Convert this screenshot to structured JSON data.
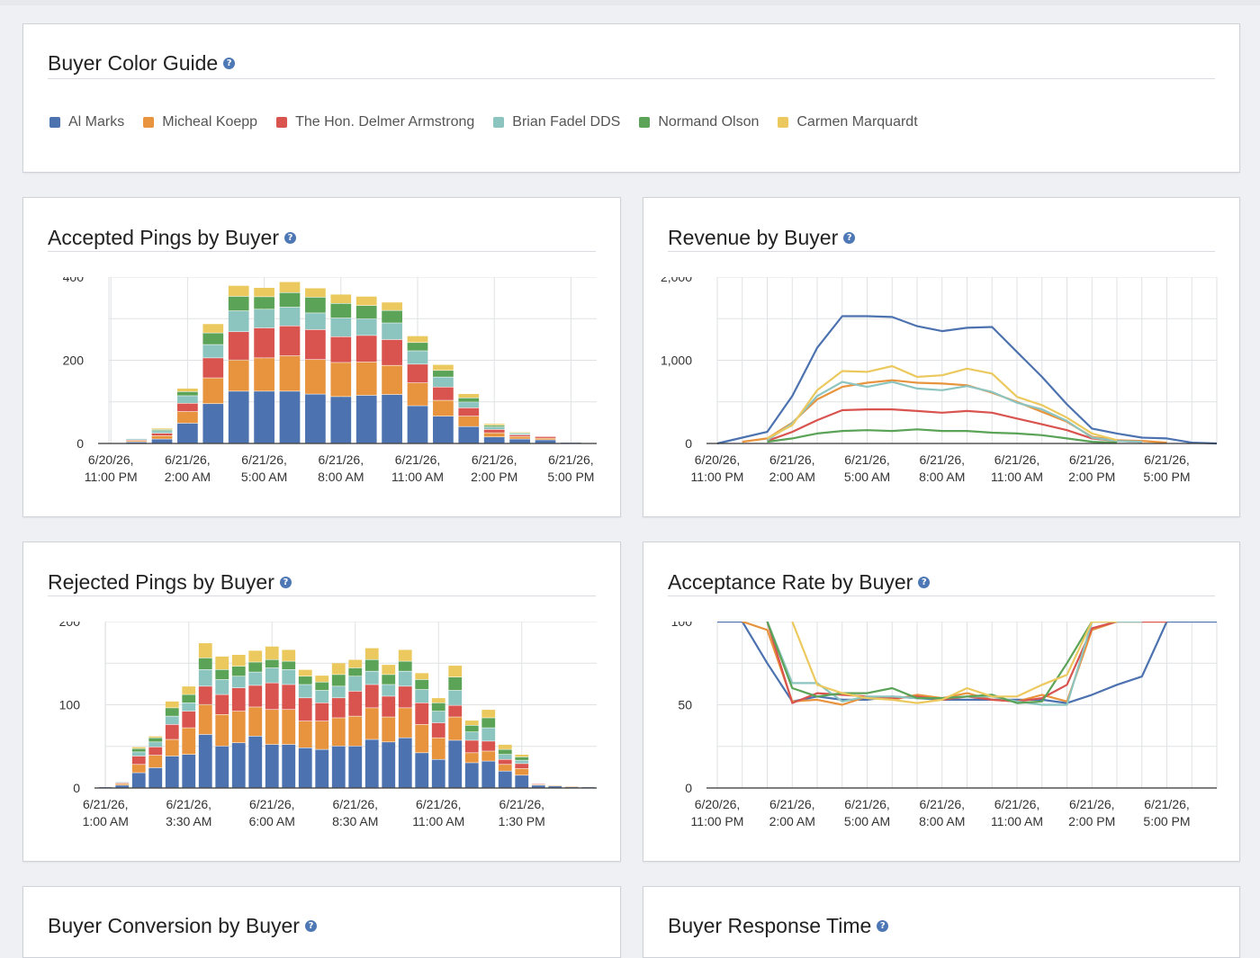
{
  "colors": {
    "al_marks": "#4c72b0",
    "micheal_koepp": "#e8933d",
    "delmer_armstrong": "#d9534f",
    "brian_fadel": "#8cc4c0",
    "normand_olson": "#5aa357",
    "carmen_marquardt": "#ecc95e",
    "grid": "#dfe1e4",
    "axis": "#333333"
  },
  "legend_card": {
    "title": "Buyer Color Guide",
    "items": [
      {
        "label": "Al Marks",
        "color": "#4c72b0"
      },
      {
        "label": "Micheal Koepp",
        "color": "#e8933d"
      },
      {
        "label": "The Hon. Delmer Armstrong",
        "color": "#d9534f"
      },
      {
        "label": "Brian Fadel DDS",
        "color": "#8cc4c0"
      },
      {
        "label": "Normand Olson",
        "color": "#5aa357"
      },
      {
        "label": "Carmen Marquardt",
        "color": "#ecc95e"
      }
    ]
  },
  "help_glyph": "?",
  "bottom_cards": {
    "left_title": "Buyer Conversion by Buyer",
    "right_title": "Buyer Response Time"
  },
  "chart_data": [
    {
      "id": "accepted",
      "title": "Accepted Pings by Buyer",
      "type": "bar",
      "stacked": true,
      "ylim": [
        0,
        400
      ],
      "y_ticks": [
        0,
        200,
        400
      ],
      "y_tick_labels": [
        "0",
        "200",
        "400"
      ],
      "x_tick_labels": [
        [
          "6/20/26,",
          "11:00 PM"
        ],
        [
          "6/21/26,",
          "2:00 AM"
        ],
        [
          "6/21/26,",
          "5:00 AM"
        ],
        [
          "6/21/26,",
          "8:00 AM"
        ],
        [
          "6/21/26,",
          "11:00 AM"
        ],
        [
          "6/21/26,",
          "2:00 PM"
        ],
        [
          "6/21/26,",
          "5:00 PM"
        ]
      ],
      "categories": [
        "6/20/26 11:00 PM",
        "6/21/26 12:00 AM",
        "6/21/26 1:00 AM",
        "6/21/26 2:00 AM",
        "6/21/26 3:00 AM",
        "6/21/26 4:00 AM",
        "6/21/26 5:00 AM",
        "6/21/26 6:00 AM",
        "6/21/26 7:00 AM",
        "6/21/26 8:00 AM",
        "6/21/26 9:00 AM",
        "6/21/26 10:00 AM",
        "6/21/26 11:00 AM",
        "6/21/26 12:00 PM",
        "6/21/26 1:00 PM",
        "6/21/26 2:00 PM",
        "6/21/26 3:00 PM",
        "6/21/26 4:00 PM",
        "6/21/26 5:00 PM",
        "6/21/26 6:00 PM"
      ],
      "series": [
        {
          "name": "Al Marks",
          "values": [
            1,
            3,
            10,
            48,
            95,
            125,
            125,
            125,
            118,
            112,
            115,
            117,
            90,
            65,
            40,
            15,
            10,
            8,
            2,
            0
          ]
        },
        {
          "name": "Micheal Koepp",
          "values": [
            1,
            3,
            8,
            28,
            62,
            75,
            80,
            85,
            83,
            82,
            80,
            70,
            55,
            38,
            25,
            10,
            6,
            4,
            1,
            0
          ]
        },
        {
          "name": "The Hon. Delmer Armstrong",
          "values": [
            1,
            2,
            6,
            20,
            48,
            68,
            72,
            72,
            72,
            62,
            64,
            62,
            45,
            32,
            20,
            8,
            4,
            4,
            1,
            0
          ]
        },
        {
          "name": "Brian Fadel DDS",
          "values": [
            1,
            3,
            6,
            18,
            32,
            50,
            45,
            45,
            40,
            45,
            40,
            40,
            32,
            24,
            14,
            6,
            3,
            1,
            1,
            0
          ]
        },
        {
          "name": "Normand Olson",
          "values": [
            1,
            1,
            3,
            10,
            28,
            35,
            30,
            35,
            38,
            35,
            32,
            30,
            20,
            16,
            10,
            4,
            2,
            1,
            0,
            0
          ]
        },
        {
          "name": "Carmen Marquardt",
          "values": [
            1,
            1,
            3,
            8,
            22,
            26,
            22,
            26,
            22,
            22,
            22,
            20,
            16,
            14,
            10,
            4,
            2,
            1,
            0,
            0
          ]
        }
      ]
    },
    {
      "id": "revenue",
      "title": "Revenue by Buyer",
      "type": "line",
      "ylim": [
        0,
        2000
      ],
      "y_ticks": [
        0,
        1000,
        2000
      ],
      "y_tick_labels": [
        "0",
        "1,000",
        "2,000"
      ],
      "x_tick_labels": [
        [
          "6/20/26,",
          "11:00 PM"
        ],
        [
          "6/21/26,",
          "2:00 AM"
        ],
        [
          "6/21/26,",
          "5:00 AM"
        ],
        [
          "6/21/26,",
          "8:00 AM"
        ],
        [
          "6/21/26,",
          "11:00 AM"
        ],
        [
          "6/21/26,",
          "2:00 PM"
        ],
        [
          "6/21/26,",
          "5:00 PM"
        ]
      ],
      "categories": [
        "6/20/26 11:00 PM",
        "6/21/26 12:00 AM",
        "6/21/26 1:00 AM",
        "6/21/26 2:00 AM",
        "6/21/26 3:00 AM",
        "6/21/26 4:00 AM",
        "6/21/26 5:00 AM",
        "6/21/26 6:00 AM",
        "6/21/26 7:00 AM",
        "6/21/26 8:00 AM",
        "6/21/26 9:00 AM",
        "6/21/26 10:00 AM",
        "6/21/26 11:00 AM",
        "6/21/26 12:00 PM",
        "6/21/26 1:00 PM",
        "6/21/26 2:00 PM",
        "6/21/26 3:00 PM",
        "6/21/26 4:00 PM",
        "6/21/26 5:00 PM",
        "6/21/26 6:00 PM",
        "6/21/26 7:00 PM"
      ],
      "series": [
        {
          "name": "Al Marks",
          "values": [
            0,
            70,
            140,
            570,
            1150,
            1530,
            1530,
            1520,
            1410,
            1350,
            1390,
            1400,
            1100,
            800,
            470,
            180,
            120,
            70,
            60,
            10,
            0
          ]
        },
        {
          "name": "Micheal Koepp",
          "values": [
            null,
            20,
            60,
            250,
            530,
            680,
            730,
            760,
            730,
            720,
            700,
            610,
            500,
            380,
            260,
            80,
            40,
            30,
            10,
            null,
            null
          ]
        },
        {
          "name": "The Hon. Delmer Armstrong",
          "values": [
            null,
            null,
            30,
            140,
            280,
            400,
            410,
            410,
            390,
            370,
            390,
            370,
            300,
            230,
            160,
            60,
            30,
            20,
            null,
            null,
            null
          ]
        },
        {
          "name": "Brian Fadel DDS",
          "values": [
            null,
            null,
            40,
            240,
            570,
            740,
            680,
            740,
            660,
            640,
            690,
            620,
            490,
            410,
            270,
            70,
            30,
            20,
            null,
            null,
            null
          ]
        },
        {
          "name": "Normand Olson",
          "values": [
            null,
            null,
            20,
            60,
            120,
            150,
            160,
            150,
            170,
            150,
            150,
            130,
            120,
            100,
            60,
            20,
            10,
            null,
            null,
            null,
            null
          ]
        },
        {
          "name": "Carmen Marquardt",
          "values": [
            null,
            null,
            60,
            220,
            640,
            870,
            860,
            930,
            800,
            820,
            900,
            840,
            560,
            460,
            310,
            120,
            40,
            null,
            null,
            null,
            null
          ]
        }
      ]
    },
    {
      "id": "rejected",
      "title": "Rejected Pings by Buyer",
      "type": "bar",
      "stacked": true,
      "ylim": [
        0,
        200
      ],
      "y_ticks": [
        0,
        100,
        200
      ],
      "y_tick_labels": [
        "0",
        "100",
        "200"
      ],
      "x_tick_labels": [
        [
          "6/21/26,",
          "1:00 AM"
        ],
        [
          "6/21/26,",
          "3:30 AM"
        ],
        [
          "6/21/26,",
          "6:00 AM"
        ],
        [
          "6/21/26,",
          "8:30 AM"
        ],
        [
          "6/21/26,",
          "11:00 AM"
        ],
        [
          "6/21/26,",
          "1:30 PM"
        ]
      ],
      "x_tick_index": [
        0,
        5,
        10,
        15,
        20,
        25
      ],
      "categories": [
        "6/21/26 1:00 AM",
        "6/21/26 1:30 AM",
        "6/21/26 2:00 AM",
        "6/21/26 2:30 AM",
        "6/21/26 3:00 AM",
        "6/21/26 3:30 AM",
        "6/21/26 4:00 AM",
        "6/21/26 4:30 AM",
        "6/21/26 5:00 AM",
        "6/21/26 5:30 AM",
        "6/21/26 6:00 AM",
        "6/21/26 6:30 AM",
        "6/21/26 7:00 AM",
        "6/21/26 7:30 AM",
        "6/21/26 8:00 AM",
        "6/21/26 8:30 AM",
        "6/21/26 9:00 AM",
        "6/21/26 9:30 AM",
        "6/21/26 10:00 AM",
        "6/21/26 10:30 AM",
        "6/21/26 11:00 AM",
        "6/21/26 11:30 AM",
        "6/21/26 12:00 PM",
        "6/21/26 12:30 PM",
        "6/21/26 1:00 PM",
        "6/21/26 1:30 PM",
        "6/21/26 2:00 PM",
        "6/21/26 2:30 PM",
        "6/21/26 3:00 PM",
        "6/21/26 3:30 PM"
      ],
      "series": [
        {
          "name": "Al Marks",
          "values": [
            1,
            3,
            18,
            24,
            38,
            40,
            64,
            50,
            54,
            62,
            52,
            52,
            48,
            46,
            50,
            50,
            58,
            55,
            60,
            42,
            34,
            57,
            30,
            32,
            20,
            15,
            3,
            2,
            1,
            1
          ]
        },
        {
          "name": "Micheal Koepp",
          "values": [
            0,
            2,
            10,
            15,
            20,
            32,
            36,
            38,
            38,
            35,
            42,
            42,
            32,
            34,
            34,
            36,
            38,
            30,
            36,
            34,
            26,
            28,
            12,
            12,
            8,
            8,
            1,
            1,
            1,
            0
          ]
        },
        {
          "name": "The Hon. Delmer Armstrong",
          "values": [
            0,
            1,
            10,
            10,
            18,
            20,
            22,
            24,
            28,
            26,
            32,
            30,
            28,
            22,
            24,
            30,
            28,
            25,
            26,
            26,
            18,
            14,
            15,
            12,
            6,
            6,
            1,
            0,
            0,
            0
          ]
        },
        {
          "name": "Brian Fadel DDS",
          "values": [
            0,
            1,
            5,
            6,
            10,
            10,
            20,
            18,
            14,
            16,
            18,
            18,
            16,
            15,
            14,
            18,
            16,
            14,
            18,
            16,
            14,
            18,
            10,
            16,
            6,
            4,
            0,
            0,
            0,
            0
          ]
        },
        {
          "name": "Normand Olson",
          "values": [
            0,
            0,
            4,
            5,
            10,
            10,
            14,
            12,
            12,
            12,
            10,
            10,
            10,
            10,
            14,
            10,
            14,
            12,
            12,
            12,
            10,
            16,
            8,
            12,
            6,
            4,
            0,
            0,
            0,
            0
          ]
        },
        {
          "name": "Carmen Marquardt",
          "values": [
            0,
            0,
            2,
            2,
            8,
            10,
            18,
            16,
            14,
            14,
            16,
            14,
            8,
            8,
            14,
            10,
            14,
            12,
            14,
            8,
            6,
            14,
            6,
            10,
            6,
            3,
            0,
            0,
            0,
            0
          ]
        }
      ]
    },
    {
      "id": "acceptance",
      "title": "Acceptance Rate by Buyer",
      "type": "line",
      "ylim": [
        0,
        100
      ],
      "y_ticks": [
        0,
        50,
        100
      ],
      "y_tick_labels": [
        "0",
        "50",
        "100"
      ],
      "x_tick_labels": [
        [
          "6/20/26,",
          "11:00 PM"
        ],
        [
          "6/21/26,",
          "2:00 AM"
        ],
        [
          "6/21/26,",
          "5:00 AM"
        ],
        [
          "6/21/26,",
          "8:00 AM"
        ],
        [
          "6/21/26,",
          "11:00 AM"
        ],
        [
          "6/21/26,",
          "2:00 PM"
        ],
        [
          "6/21/26,",
          "5:00 PM"
        ]
      ],
      "categories": [
        "6/20/26 11:00 PM",
        "6/21/26 12:00 AM",
        "6/21/26 1:00 AM",
        "6/21/26 2:00 AM",
        "6/21/26 3:00 AM",
        "6/21/26 4:00 AM",
        "6/21/26 5:00 AM",
        "6/21/26 6:00 AM",
        "6/21/26 7:00 AM",
        "6/21/26 8:00 AM",
        "6/21/26 9:00 AM",
        "6/21/26 10:00 AM",
        "6/21/26 11:00 AM",
        "6/21/26 12:00 PM",
        "6/21/26 1:00 PM",
        "6/21/26 2:00 PM",
        "6/21/26 3:00 PM",
        "6/21/26 4:00 PM",
        "6/21/26 5:00 PM",
        "6/21/26 6:00 PM",
        "6/21/26 7:00 PM"
      ],
      "series": [
        {
          "name": "Al Marks",
          "values": [
            100,
            100,
            75,
            52,
            55,
            53,
            53,
            55,
            54,
            53,
            53,
            53,
            53,
            53,
            51,
            56,
            62,
            67,
            100,
            100,
            100
          ]
        },
        {
          "name": "Micheal Koepp",
          "values": [
            null,
            100,
            95,
            52,
            53,
            50,
            55,
            53,
            56,
            54,
            57,
            53,
            52,
            56,
            52,
            95,
            100,
            100,
            100,
            null,
            null
          ]
        },
        {
          "name": "The Hon. Delmer Armstrong",
          "values": [
            null,
            null,
            100,
            51,
            57,
            56,
            55,
            54,
            55,
            53,
            55,
            53,
            52,
            54,
            62,
            96,
            100,
            100,
            100,
            null,
            null
          ]
        },
        {
          "name": "Brian Fadel DDS",
          "values": [
            null,
            null,
            100,
            63,
            63,
            52,
            55,
            55,
            54,
            54,
            55,
            55,
            52,
            50,
            50,
            100,
            100,
            100,
            null,
            null,
            null
          ]
        },
        {
          "name": "Normand Olson",
          "values": [
            null,
            null,
            100,
            60,
            55,
            57,
            57,
            60,
            54,
            54,
            55,
            56,
            51,
            52,
            75,
            100,
            100,
            null,
            null,
            null,
            null
          ]
        },
        {
          "name": "Carmen Marquardt",
          "values": [
            null,
            null,
            null,
            100,
            62,
            57,
            54,
            53,
            51,
            53,
            60,
            55,
            55,
            62,
            68,
            100,
            100,
            null,
            null,
            null,
            null
          ]
        }
      ]
    }
  ]
}
